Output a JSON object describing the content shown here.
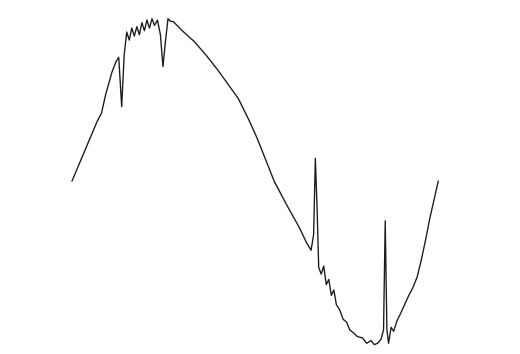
{
  "chart_data": {
    "type": "line",
    "title": "",
    "xlabel": "",
    "ylabel": "",
    "grid": false,
    "legend": "none",
    "colors": {
      "background": "#ffffff",
      "waveform": "#1a1a1a",
      "baseline_left": "#b7a3bf",
      "baseline_right": "#8fc7cf"
    },
    "series": [
      {
        "values": [
          [
            0,
            0
          ],
          [
            0.06,
            0.45
          ],
          [
            0.07,
            0.51
          ],
          [
            0.08,
            0.65
          ],
          [
            0.095,
            0.82
          ],
          [
            0.105,
            0.9
          ],
          [
            0.111,
            0.93
          ],
          [
            0.118,
            0.56
          ],
          [
            0.124,
            0.95
          ],
          [
            0.13,
            1.12
          ],
          [
            0.136,
            1.06
          ],
          [
            0.142,
            1.15
          ],
          [
            0.148,
            1.09
          ],
          [
            0.154,
            1.16
          ],
          [
            0.16,
            1.1
          ],
          [
            0.166,
            1.19
          ],
          [
            0.172,
            1.13
          ],
          [
            0.178,
            1.21
          ],
          [
            0.184,
            1.15
          ],
          [
            0.19,
            1.22
          ],
          [
            0.196,
            1.17
          ],
          [
            0.203,
            1.21
          ],
          [
            0.21,
            1.1
          ],
          [
            0.216,
            0.86
          ],
          [
            0.222,
            1.05
          ],
          [
            0.228,
            1.22
          ],
          [
            0.234,
            1.2
          ],
          [
            0.24,
            1.2
          ],
          [
            0.262,
            1.13
          ],
          [
            0.29,
            1.05
          ],
          [
            0.32,
            0.94
          ],
          [
            0.345,
            0.84
          ],
          [
            0.37,
            0.73
          ],
          [
            0.395,
            0.62
          ],
          [
            0.42,
            0.46
          ],
          [
            0.44,
            0.32
          ],
          [
            0.455,
            0.2
          ],
          [
            0.465,
            0.12
          ],
          [
            0.48,
            0.0
          ],
          [
            0.51,
            -0.18
          ],
          [
            0.54,
            -0.35
          ],
          [
            0.558,
            -0.47
          ],
          [
            0.568,
            -0.52
          ],
          [
            0.574,
            -0.4
          ],
          [
            0.578,
            0.17
          ],
          [
            0.582,
            -0.19
          ],
          [
            0.586,
            -0.65
          ],
          [
            0.592,
            -0.7
          ],
          [
            0.598,
            -0.64
          ],
          [
            0.604,
            -0.78
          ],
          [
            0.61,
            -0.74
          ],
          [
            0.616,
            -0.86
          ],
          [
            0.622,
            -0.82
          ],
          [
            0.628,
            -0.93
          ],
          [
            0.636,
            -0.97
          ],
          [
            0.644,
            -1.04
          ],
          [
            0.652,
            -1.06
          ],
          [
            0.66,
            -1.12
          ],
          [
            0.668,
            -1.14
          ],
          [
            0.678,
            -1.17
          ],
          [
            0.69,
            -1.18
          ],
          [
            0.7,
            -1.22
          ],
          [
            0.71,
            -1.2
          ],
          [
            0.718,
            -1.23
          ],
          [
            0.726,
            -1.22
          ],
          [
            0.734,
            -1.19
          ],
          [
            0.74,
            -1.12
          ],
          [
            0.744,
            -0.3
          ],
          [
            0.748,
            -1.12
          ],
          [
            0.752,
            -1.22
          ],
          [
            0.758,
            -1.1
          ],
          [
            0.764,
            -1.13
          ],
          [
            0.772,
            -1.05
          ],
          [
            0.78,
            -1.0
          ],
          [
            0.79,
            -0.93
          ],
          [
            0.8,
            -0.86
          ],
          [
            0.81,
            -0.8
          ],
          [
            0.82,
            -0.72
          ],
          [
            0.83,
            -0.59
          ],
          [
            0.84,
            -0.44
          ],
          [
            0.85,
            -0.28
          ],
          [
            0.86,
            -0.14
          ],
          [
            0.87,
            0.0
          ]
        ]
      }
    ],
    "xlim": [
      0,
      1
    ],
    "ylim": [
      -1.28,
      1.28
    ]
  }
}
